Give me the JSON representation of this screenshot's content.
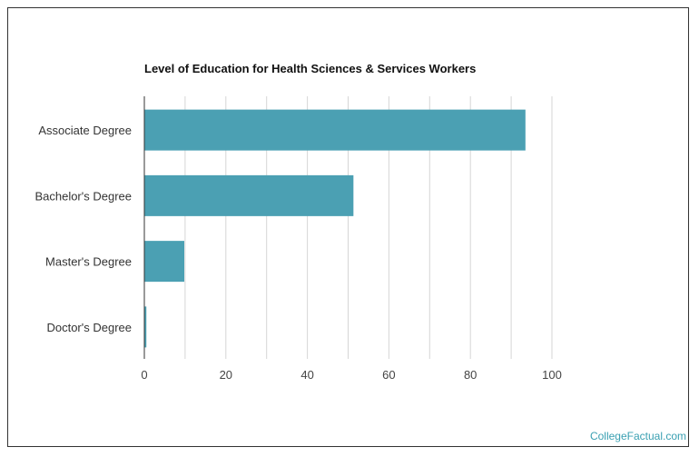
{
  "chart_data": {
    "type": "bar",
    "orientation": "horizontal",
    "title": "Level of Education for Health Sciences & Services Workers",
    "categories": [
      "Associate Degree",
      "Bachelor's Degree",
      "Master's Degree",
      "Doctor's Degree"
    ],
    "values": [
      93.5,
      51.3,
      9.8,
      0.5
    ],
    "xlabel": "",
    "ylabel": "",
    "xlim": [
      0,
      100
    ],
    "xticks": [
      0,
      20,
      40,
      60,
      80,
      100
    ],
    "grid": true,
    "bar_color": "#4ba0b3",
    "grid_color": "#d6d6d6"
  },
  "watermark": "CollegeFactual.com"
}
